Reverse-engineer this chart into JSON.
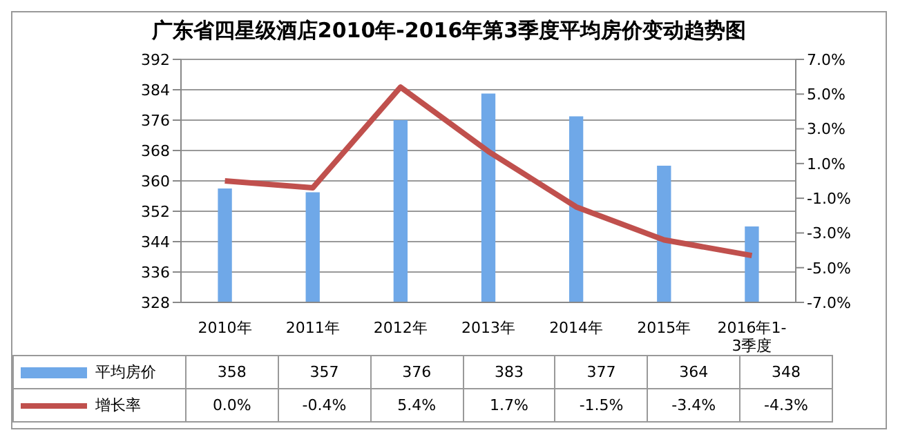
{
  "chart_data": {
    "type": "bar",
    "title": "广东省四星级酒店2010年-2016年第3季度平均房价变动趋势图",
    "categories": [
      "2010年",
      "2011年",
      "2012年",
      "2013年",
      "2014年",
      "2015年",
      "2016年1-3季度"
    ],
    "series": [
      {
        "name": "平均房价",
        "color": "#6fa8e8",
        "values": [
          358,
          357,
          376,
          383,
          377,
          364,
          348
        ],
        "value_labels": [
          "358",
          "357",
          "376",
          "383",
          "377",
          "364",
          "348"
        ]
      },
      {
        "name": "增长率",
        "type": "line",
        "axis": "y2",
        "color": "#c0504d",
        "values": [
          0.0,
          -0.4,
          5.4,
          1.7,
          -1.5,
          -3.4,
          -4.3
        ],
        "value_labels": [
          "0.0%",
          "-0.4%",
          "5.4%",
          "1.7%",
          "-1.5%",
          "-3.4%",
          "-4.3%"
        ]
      }
    ],
    "ylim": [
      328,
      392
    ],
    "yticks": [
      328,
      336,
      344,
      352,
      360,
      368,
      376,
      384,
      392
    ],
    "y2lim": [
      -7,
      7
    ],
    "y2ticks": [
      {
        "value": -7,
        "label": "-7.0%"
      },
      {
        "value": -5,
        "label": "-5.0%"
      },
      {
        "value": -3,
        "label": "-3.0%"
      },
      {
        "value": -1,
        "label": "-1.0%"
      },
      {
        "value": 1,
        "label": "1.0%"
      },
      {
        "value": 3,
        "label": "3.0%"
      },
      {
        "value": 5,
        "label": "5.0%"
      },
      {
        "value": 7,
        "label": "7.0%"
      }
    ],
    "grid": "y",
    "legend": "bottom left",
    "marker": "none",
    "line_style": "solid"
  }
}
